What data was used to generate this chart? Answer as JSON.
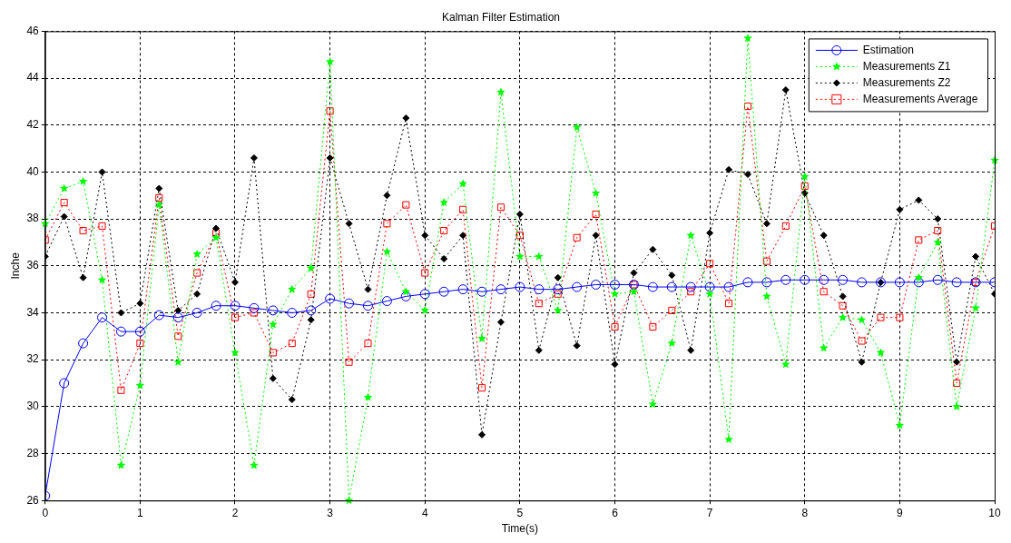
{
  "chart_data": {
    "type": "line",
    "title": "Kalman Filter Estimation",
    "xlabel": "Time(s)",
    "ylabel": "Inche",
    "x": [
      0,
      0.2,
      0.4,
      0.6,
      0.8,
      1,
      1.2,
      1.4,
      1.6,
      1.8,
      2,
      2.2,
      2.4,
      2.6,
      2.8,
      3,
      3.2,
      3.4,
      3.6,
      3.8,
      4,
      4.2,
      4.4,
      4.6,
      4.8,
      5,
      5.2,
      5.4,
      5.6,
      5.8,
      6,
      6.2,
      6.4,
      6.6,
      6.8,
      7,
      7.2,
      7.4,
      7.6,
      7.8,
      8,
      8.2,
      8.4,
      8.6,
      8.8,
      9,
      9.2,
      9.4,
      9.6,
      9.8,
      10
    ],
    "series": [
      {
        "name": "Estimation",
        "color": "#0000ff",
        "marker": "circle",
        "line_style": "solid",
        "values": [
          26.2,
          31.0,
          32.7,
          33.8,
          33.2,
          33.2,
          33.9,
          33.8,
          34.0,
          34.3,
          34.3,
          34.2,
          34.1,
          34.0,
          34.1,
          34.6,
          34.4,
          34.3,
          34.5,
          34.7,
          34.8,
          34.9,
          35.0,
          34.9,
          35.0,
          35.1,
          35.0,
          35.0,
          35.1,
          35.2,
          35.2,
          35.2,
          35.1,
          35.1,
          35.1,
          35.1,
          35.1,
          35.3,
          35.3,
          35.4,
          35.4,
          35.4,
          35.4,
          35.3,
          35.3,
          35.3,
          35.3,
          35.4,
          35.3,
          35.3,
          35.3
        ]
      },
      {
        "name": "Measurements Z1",
        "color": "#00ff00",
        "marker": "star",
        "line_style": "dotted",
        "values": [
          37.8,
          39.3,
          39.6,
          35.4,
          27.5,
          30.9,
          38.6,
          31.9,
          36.5,
          37.2,
          32.3,
          27.5,
          33.5,
          35.0,
          35.9,
          44.7,
          26.0,
          30.4,
          36.6,
          34.9,
          34.1,
          38.7,
          39.5,
          32.9,
          43.4,
          36.4,
          36.4,
          34.1,
          41.9,
          39.1,
          34.8,
          34.9,
          30.1,
          32.7,
          37.3,
          34.8,
          28.6,
          45.7,
          34.7,
          31.8,
          39.8,
          32.5,
          33.8,
          33.7,
          32.3,
          29.2,
          35.5,
          37.0,
          30.0,
          34.2,
          40.5
        ]
      },
      {
        "name": "Measurements Z2",
        "color": "#000000",
        "marker": "diamond",
        "line_style": "dotted",
        "values": [
          36.4,
          38.1,
          35.5,
          40.0,
          34.0,
          34.4,
          39.3,
          34.1,
          34.8,
          37.6,
          35.3,
          40.6,
          31.2,
          30.3,
          33.7,
          40.6,
          37.8,
          35.0,
          39.0,
          42.3,
          37.3,
          36.3,
          37.3,
          28.8,
          33.6,
          38.2,
          32.4,
          35.5,
          32.6,
          37.3,
          31.8,
          35.7,
          36.7,
          35.6,
          32.4,
          37.4,
          40.1,
          39.9,
          37.8,
          43.5,
          39.1,
          37.3,
          34.7,
          31.9,
          35.3,
          38.4,
          38.8,
          38.0,
          31.9,
          36.4,
          34.8
        ]
      },
      {
        "name": "Measurements Average",
        "color": "#ff0000",
        "marker": "square",
        "line_style": "dotted",
        "values": [
          37.1,
          38.7,
          37.5,
          37.7,
          30.7,
          32.7,
          38.9,
          33.0,
          35.7,
          37.4,
          33.8,
          34.0,
          32.3,
          32.7,
          34.8,
          42.6,
          31.9,
          32.7,
          37.8,
          38.6,
          35.7,
          37.5,
          38.4,
          30.8,
          38.5,
          37.3,
          34.4,
          34.8,
          37.2,
          38.2,
          33.4,
          35.2,
          33.4,
          34.1,
          34.9,
          36.1,
          34.4,
          42.8,
          36.2,
          37.7,
          39.4,
          34.9,
          34.3,
          32.8,
          33.8,
          33.8,
          37.1,
          37.5,
          31.0,
          35.3,
          37.7
        ]
      }
    ],
    "xlim": [
      0,
      10
    ],
    "xticks": [
      0,
      1,
      2,
      3,
      4,
      5,
      6,
      7,
      8,
      9,
      10
    ],
    "ylim": [
      26,
      46
    ],
    "yticks": [
      26,
      28,
      30,
      32,
      34,
      36,
      38,
      40,
      42,
      44,
      46
    ],
    "grid": true,
    "legend": "top right"
  }
}
